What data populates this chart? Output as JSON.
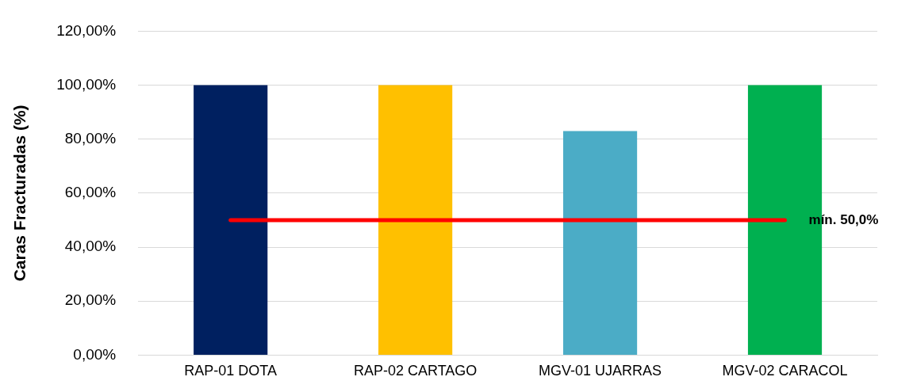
{
  "chart_data": {
    "type": "bar",
    "ylabel": "Caras Fracturadas (%)",
    "categories": [
      "RAP-01 DOTA",
      "RAP-02 CARTAGO",
      "MGV-01 UJARRAS",
      "MGV-02 CARACOL"
    ],
    "series": [
      {
        "colors": [
          "#002060",
          "#ffc000",
          "#4bacc6",
          "#00b050"
        ],
        "values": [
          100,
          100,
          83,
          100
        ]
      },
      {
        "type": "line",
        "color": "#ff0000",
        "values": [
          50,
          50,
          50,
          50
        ],
        "marker": "none",
        "line_style": "solid"
      }
    ],
    "annotations": [
      {
        "text": "mín. 50,0%",
        "x": "MGV-02 CARACOL",
        "y": 50
      }
    ],
    "ylim": [
      0,
      120
    ],
    "yticks": [
      {
        "value": 0,
        "label": "0,00%"
      },
      {
        "value": 20,
        "label": "20,00%"
      },
      {
        "value": 40,
        "label": "40,00%"
      },
      {
        "value": 60,
        "label": "60,00%"
      },
      {
        "value": 80,
        "label": "80,00%"
      },
      {
        "value": 100,
        "label": "100,00%"
      },
      {
        "value": 120,
        "label": "120,00%"
      }
    ],
    "grid": "y",
    "legend": false
  }
}
